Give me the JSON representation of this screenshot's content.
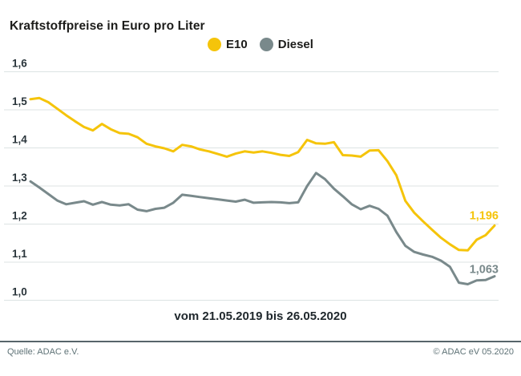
{
  "header": {
    "title": "Kraftstoffpreise in Euro pro Liter"
  },
  "legend": [
    {
      "label": "E10",
      "color": "#f5c40a"
    },
    {
      "label": "Diesel",
      "color": "#79898b"
    }
  ],
  "colors": {
    "e10": "#f5c40a",
    "diesel": "#79898b",
    "gridline": "#dce3e3",
    "text_dark": "#1c1c1a",
    "footer": "#5e7276"
  },
  "chart_data": {
    "type": "line",
    "title": "Kraftstoffpreise in Euro pro Liter",
    "xlabel": "vom 21.05.2019 bis 26.05.2020",
    "ylabel": "",
    "ylim": [
      1.0,
      1.6
    ],
    "yticks": [
      1.6,
      1.5,
      1.4,
      1.3,
      1.2,
      1.1,
      1.0
    ],
    "ytick_labels": [
      "1,6",
      "1,5",
      "1,4",
      "1,3",
      "1,2",
      "1,1",
      "1,0"
    ],
    "grid": true,
    "legend_position": "top-center",
    "x_range_text": "weekly values from 21.05.2019 to 26.05.2020",
    "series": [
      {
        "name": "E10",
        "color": "#f5c40a",
        "end_label": "1,196",
        "end_value": 1.196,
        "values": [
          1.528,
          1.531,
          1.52,
          1.503,
          1.486,
          1.47,
          1.455,
          1.446,
          1.463,
          1.449,
          1.439,
          1.437,
          1.428,
          1.411,
          1.404,
          1.399,
          1.391,
          1.408,
          1.404,
          1.396,
          1.391,
          1.384,
          1.377,
          1.385,
          1.391,
          1.388,
          1.391,
          1.387,
          1.382,
          1.379,
          1.389,
          1.421,
          1.412,
          1.411,
          1.415,
          1.381,
          1.38,
          1.377,
          1.393,
          1.394,
          1.365,
          1.328,
          1.261,
          1.23,
          1.207,
          1.185,
          1.164,
          1.147,
          1.132,
          1.131,
          1.159,
          1.171,
          1.196
        ]
      },
      {
        "name": "Diesel",
        "color": "#79898b",
        "end_label": "1,063",
        "end_value": 1.063,
        "values": [
          1.312,
          1.296,
          1.279,
          1.262,
          1.252,
          1.256,
          1.26,
          1.251,
          1.258,
          1.251,
          1.249,
          1.252,
          1.238,
          1.234,
          1.24,
          1.243,
          1.256,
          1.277,
          1.274,
          1.271,
          1.268,
          1.265,
          1.262,
          1.259,
          1.264,
          1.256,
          1.257,
          1.258,
          1.257,
          1.255,
          1.257,
          1.3,
          1.334,
          1.318,
          1.293,
          1.273,
          1.252,
          1.239,
          1.248,
          1.24,
          1.222,
          1.179,
          1.143,
          1.127,
          1.12,
          1.114,
          1.104,
          1.088,
          1.046,
          1.042,
          1.052,
          1.053,
          1.063
        ]
      }
    ]
  },
  "footer": {
    "source": "Quelle: ADAC e.V.",
    "copyright": "© ADAC eV 05.2020"
  }
}
